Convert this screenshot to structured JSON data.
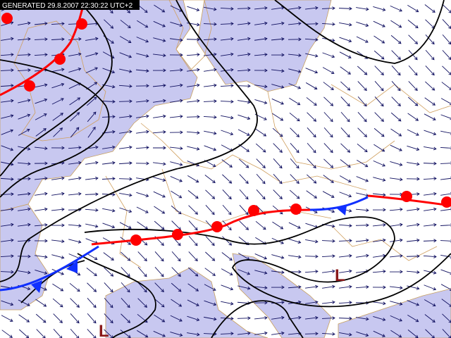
{
  "header": {
    "timestamp": "GENERATED 29.8.2007 22:30:22 UTC+2"
  },
  "lows": [
    "L",
    "L"
  ]
}
